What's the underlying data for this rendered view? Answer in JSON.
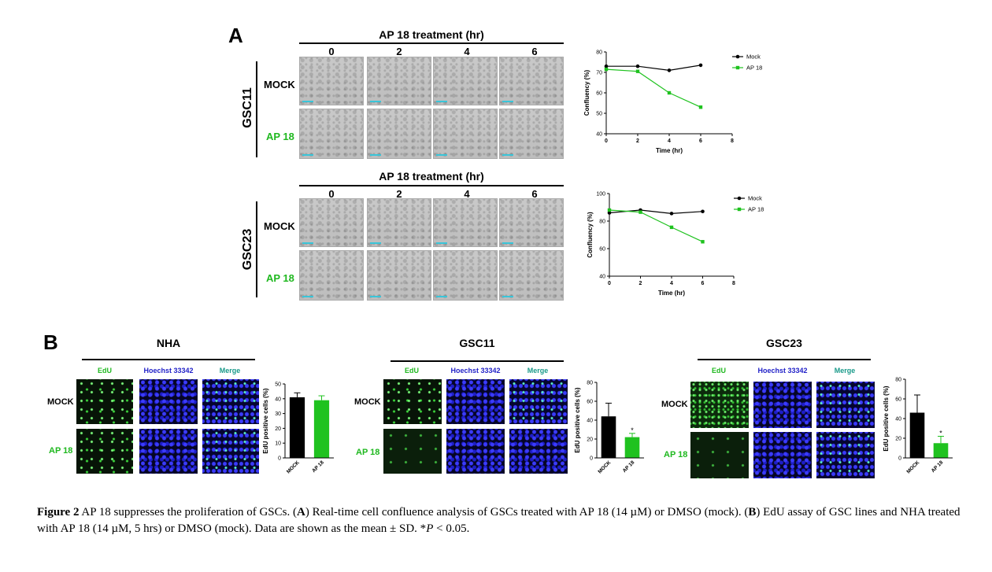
{
  "panelA": {
    "letter": "A",
    "blocks": [
      {
        "cell_line": "GSC11",
        "treatment_header": "AP 18 treatment (hr)",
        "timepoints": [
          "0",
          "2",
          "4",
          "6"
        ],
        "rows": [
          "MOCK",
          "AP 18"
        ]
      },
      {
        "cell_line": "GSC23",
        "treatment_header": "AP 18 treatment (hr)",
        "timepoints": [
          "0",
          "2",
          "4",
          "6"
        ],
        "rows": [
          "MOCK",
          "AP 18"
        ]
      }
    ]
  },
  "panelB": {
    "letter": "B",
    "channels": [
      "EdU",
      "Hoechst 33342",
      "Merge"
    ],
    "channel_colors": [
      "#1fb81f",
      "#2323c8",
      "#1a9a8a"
    ],
    "groups": [
      {
        "name": "NHA",
        "rows": [
          "MOCK",
          "AP 18"
        ]
      },
      {
        "name": "GSC11",
        "rows": [
          "MOCK",
          "AP 18"
        ]
      },
      {
        "name": "GSC23",
        "rows": [
          "MOCK",
          "AP 18"
        ]
      }
    ]
  },
  "colors": {
    "mock": "#000000",
    "ap18": "#1fc21f"
  },
  "chart_data": [
    {
      "type": "line",
      "xlabel": "Time (hr)",
      "ylabel": "Confluency (%)",
      "xlim": [
        0,
        8
      ],
      "ylim": [
        40,
        80
      ],
      "xticks": [
        0,
        2,
        4,
        6,
        8
      ],
      "yticks": [
        40,
        50,
        60,
        70,
        80
      ],
      "legend": "top-right",
      "series": [
        {
          "name": "Mock",
          "x": [
            0,
            2,
            4,
            6
          ],
          "y": [
            73,
            73,
            71,
            73.5
          ]
        },
        {
          "name": "AP 18",
          "x": [
            0,
            2,
            4,
            6
          ],
          "y": [
            71.5,
            70.5,
            60,
            53
          ]
        }
      ]
    },
    {
      "type": "line",
      "xlabel": "Time (hr)",
      "ylabel": "Confluency (%)",
      "xlim": [
        0,
        8
      ],
      "ylim": [
        40,
        100
      ],
      "xticks": [
        0,
        2,
        4,
        6,
        8
      ],
      "yticks": [
        40,
        60,
        80,
        100
      ],
      "legend": "top-right",
      "series": [
        {
          "name": "Mock",
          "x": [
            0,
            2,
            4,
            6
          ],
          "y": [
            86,
            88,
            85.5,
            87
          ]
        },
        {
          "name": "AP 18",
          "x": [
            0,
            2,
            4,
            6
          ],
          "y": [
            88,
            86.5,
            75.5,
            65
          ]
        }
      ]
    },
    {
      "type": "bar",
      "categories": [
        "MOCK",
        "AP 18"
      ],
      "values": [
        41,
        39
      ],
      "errors": [
        3,
        3
      ],
      "ylabel": "EdU positive cells (%)",
      "ylim": [
        0,
        50
      ],
      "yticks": [
        0,
        10,
        20,
        30,
        40,
        50
      ],
      "significance": [
        "",
        ""
      ]
    },
    {
      "type": "bar",
      "categories": [
        "MOCK",
        "AP 18"
      ],
      "values": [
        44,
        22
      ],
      "errors": [
        14,
        4
      ],
      "ylabel": "EdU positive cells (%)",
      "ylim": [
        0,
        80
      ],
      "yticks": [
        0,
        20,
        40,
        60,
        80
      ],
      "significance": [
        "",
        "*"
      ]
    },
    {
      "type": "bar",
      "categories": [
        "MOCK",
        "AP 18"
      ],
      "values": [
        46,
        15
      ],
      "errors": [
        18,
        7
      ],
      "ylabel": "EdU positive cells (%)",
      "ylim": [
        0,
        80
      ],
      "yticks": [
        0,
        20,
        40,
        60,
        80
      ],
      "significance": [
        "",
        "*"
      ]
    }
  ],
  "caption": {
    "figure_label": "Figure 2",
    "text_1": " AP 18 suppresses the proliferation of GSCs. (",
    "A": "A",
    "text_2": ") Real-time cell confluence analysis of GSCs treated with AP 18 (14 µM) or DMSO (mock). (",
    "B": "B",
    "text_3": ") EdU assay of GSC lines and NHA treated with AP 18 (14 µM, 5 hrs) or DMSO (mock). Data are shown as the mean ± SD. *",
    "p": "P",
    "text_4": " < 0.05."
  }
}
